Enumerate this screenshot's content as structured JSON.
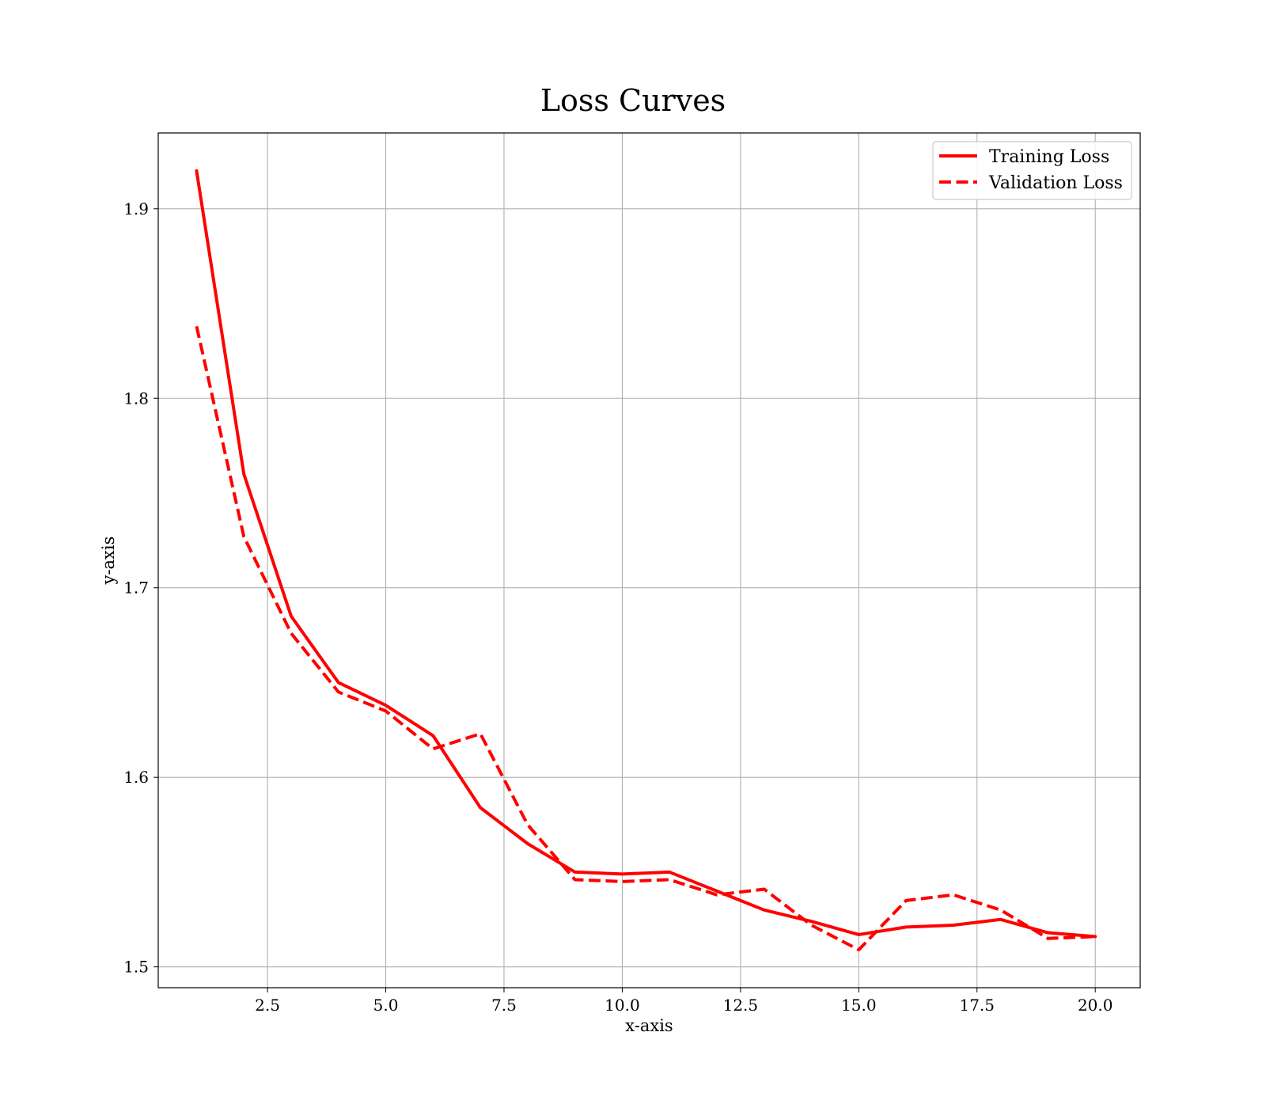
{
  "chart_data": {
    "type": "line",
    "title": "Loss Curves",
    "xlabel": "x-axis",
    "ylabel": "y-axis",
    "xlim": [
      0.19,
      20.95
    ],
    "ylim": [
      1.489,
      1.94
    ],
    "xticks": [
      2.5,
      5.0,
      7.5,
      10.0,
      12.5,
      15.0,
      17.5,
      20.0
    ],
    "xtick_labels": [
      "2.5",
      "5.0",
      "7.5",
      "10.0",
      "12.5",
      "15.0",
      "17.5",
      "20.0"
    ],
    "yticks": [
      1.5,
      1.6,
      1.7,
      1.8,
      1.9
    ],
    "ytick_labels": [
      "1.5",
      "1.6",
      "1.7",
      "1.8",
      "1.9"
    ],
    "grid": true,
    "legend_position": "top-right",
    "x": [
      1,
      2,
      3,
      4,
      5,
      6,
      7,
      8,
      9,
      10,
      11,
      12,
      13,
      14,
      15,
      16,
      17,
      18,
      19,
      20
    ],
    "series": [
      {
        "name": "Training Loss",
        "color": "#ff0000",
        "style": "solid",
        "values": [
          1.92,
          1.76,
          1.685,
          1.65,
          1.638,
          1.622,
          1.584,
          1.565,
          1.55,
          1.549,
          1.55,
          1.54,
          1.53,
          1.524,
          1.517,
          1.521,
          1.522,
          1.525,
          1.518,
          1.516
        ]
      },
      {
        "name": "Validation Loss",
        "color": "#ff0000",
        "style": "dashed",
        "values": [
          1.838,
          1.727,
          1.676,
          1.645,
          1.635,
          1.615,
          1.623,
          1.575,
          1.546,
          1.545,
          1.546,
          1.538,
          1.541,
          1.522,
          1.509,
          1.535,
          1.538,
          1.53,
          1.515,
          1.516
        ]
      }
    ]
  }
}
